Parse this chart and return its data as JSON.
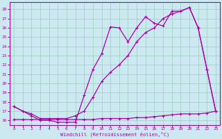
{
  "xlabel": "Windchill (Refroidissement éolien,°C)",
  "x_ticks": [
    0,
    1,
    2,
    3,
    4,
    5,
    6,
    7,
    8,
    9,
    10,
    11,
    12,
    13,
    14,
    15,
    16,
    17,
    18,
    19,
    20,
    21,
    22,
    23
  ],
  "ylim": [
    15.5,
    28.8
  ],
  "xlim": [
    -0.5,
    23.5
  ],
  "y_ticks": [
    16,
    17,
    18,
    19,
    20,
    21,
    22,
    23,
    24,
    25,
    26,
    27,
    28
  ],
  "bg_color": "#cce8f0",
  "line_color": "#aa00aa",
  "grid_color": "#99ccbb",
  "line1_x": [
    0,
    1,
    2,
    3,
    4,
    5,
    6,
    7,
    8,
    9,
    10,
    11,
    12,
    13,
    14,
    15,
    16,
    17,
    18,
    19,
    20,
    21,
    22,
    23
  ],
  "line1_y": [
    17.5,
    17.0,
    16.5,
    16.0,
    16.0,
    15.8,
    15.8,
    15.8,
    18.7,
    21.5,
    23.2,
    26.1,
    26.0,
    24.5,
    26.0,
    27.2,
    26.5,
    26.2,
    27.8,
    27.8,
    28.2,
    26.0,
    21.5,
    17.0
  ],
  "line2_x": [
    0,
    1,
    2,
    3,
    4,
    5,
    6,
    7,
    8,
    9,
    10,
    11,
    12,
    13,
    14,
    15,
    16,
    17,
    18,
    19,
    20,
    21,
    22,
    23
  ],
  "line2_y": [
    17.5,
    17.0,
    16.7,
    16.2,
    16.2,
    16.2,
    16.2,
    16.5,
    17.0,
    18.5,
    20.2,
    21.2,
    22.0,
    23.0,
    24.5,
    25.5,
    26.0,
    27.0,
    27.5,
    27.8,
    28.2,
    26.0,
    21.5,
    17.0
  ],
  "line3_x": [
    0,
    1,
    2,
    3,
    4,
    5,
    6,
    7,
    8,
    9,
    10,
    11,
    12,
    13,
    14,
    15,
    16,
    17,
    18,
    19,
    20,
    21,
    22,
    23
  ],
  "line3_y": [
    16.1,
    16.1,
    16.1,
    16.1,
    16.1,
    16.1,
    16.1,
    16.1,
    16.1,
    16.1,
    16.2,
    16.2,
    16.2,
    16.2,
    16.3,
    16.3,
    16.4,
    16.5,
    16.6,
    16.7,
    16.7,
    16.7,
    16.8,
    17.0
  ]
}
